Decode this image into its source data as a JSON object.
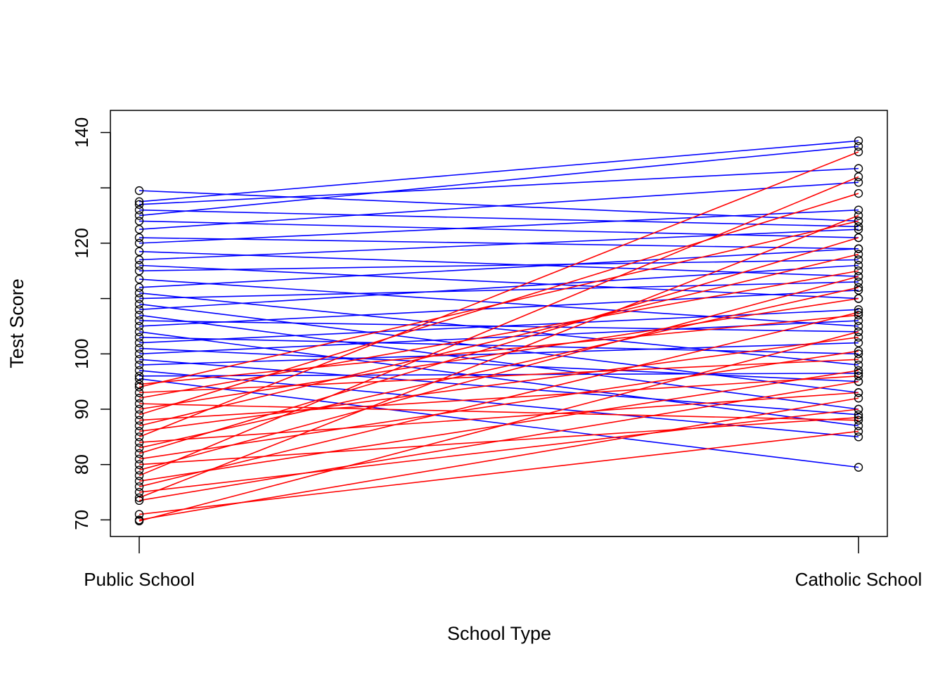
{
  "chart_data": {
    "type": "line",
    "title": "",
    "xlabel": "School Type",
    "ylabel": "Test Score",
    "categories": [
      "Public School",
      "Catholic School"
    ],
    "y_ticks": [
      70,
      80,
      90,
      100,
      110,
      120,
      130,
      140
    ],
    "y_tick_labels": [
      "70",
      "80",
      "90",
      "100",
      "",
      "120",
      "",
      "140"
    ],
    "ylim": [
      67,
      144
    ],
    "grid": false,
    "legend": "none",
    "point_marker": "open-circle",
    "series_colors": {
      "public_higher_group": "#0000ff",
      "public_lower_group": "#ff0000"
    },
    "series": [
      {
        "color": "#0000ff",
        "values": [
          129.5,
          124.0
        ]
      },
      {
        "color": "#0000ff",
        "values": [
          127.5,
          138.5
        ]
      },
      {
        "color": "#0000ff",
        "values": [
          127.0,
          133.5
        ]
      },
      {
        "color": "#0000ff",
        "values": [
          126.0,
          123.0
        ]
      },
      {
        "color": "#0000ff",
        "values": [
          125.0,
          137.5
        ]
      },
      {
        "color": "#0000ff",
        "values": [
          124.0,
          121.0
        ]
      },
      {
        "color": "#0000ff",
        "values": [
          122.5,
          131.0
        ]
      },
      {
        "color": "#0000ff",
        "values": [
          121.0,
          119.0
        ]
      },
      {
        "color": "#0000ff",
        "values": [
          120.0,
          126.0
        ]
      },
      {
        "color": "#0000ff",
        "values": [
          118.5,
          114.0
        ]
      },
      {
        "color": "#0000ff",
        "values": [
          117.0,
          122.5
        ]
      },
      {
        "color": "#0000ff",
        "values": [
          116.0,
          110.0
        ]
      },
      {
        "color": "#0000ff",
        "values": [
          115.0,
          117.0
        ]
      },
      {
        "color": "#0000ff",
        "values": [
          113.5,
          105.0
        ]
      },
      {
        "color": "#0000ff",
        "values": [
          112.0,
          119.0
        ]
      },
      {
        "color": "#0000ff",
        "values": [
          111.0,
          98.0
        ]
      },
      {
        "color": "#0000ff",
        "values": [
          110.0,
          113.0
        ]
      },
      {
        "color": "#0000ff",
        "values": [
          109.0,
          93.0
        ]
      },
      {
        "color": "#0000ff",
        "values": [
          108.0,
          116.0
        ]
      },
      {
        "color": "#0000ff",
        "values": [
          107.0,
          90.0
        ]
      },
      {
        "color": "#0000ff",
        "values": [
          106.0,
          104.0
        ]
      },
      {
        "color": "#0000ff",
        "values": [
          105.0,
          111.5
        ]
      },
      {
        "color": "#0000ff",
        "values": [
          104.0,
          87.0
        ]
      },
      {
        "color": "#0000ff",
        "values": [
          103.0,
          100.0
        ]
      },
      {
        "color": "#0000ff",
        "values": [
          102.0,
          108.0
        ]
      },
      {
        "color": "#0000ff",
        "values": [
          101.0,
          95.0
        ]
      },
      {
        "color": "#0000ff",
        "values": [
          100.0,
          106.0
        ]
      },
      {
        "color": "#0000ff",
        "values": [
          99.0,
          89.0
        ]
      },
      {
        "color": "#0000ff",
        "values": [
          98.0,
          102.0
        ]
      },
      {
        "color": "#0000ff",
        "values": [
          97.0,
          85.0
        ]
      },
      {
        "color": "#0000ff",
        "values": [
          96.0,
          96.5
        ]
      },
      {
        "color": "#0000ff",
        "values": [
          95.5,
          79.5
        ]
      },
      {
        "color": "#ff0000",
        "values": [
          94.5,
          107.0
        ]
      },
      {
        "color": "#ff0000",
        "values": [
          94.0,
          124.0
        ]
      },
      {
        "color": "#ff0000",
        "values": [
          93.0,
          99.0
        ]
      },
      {
        "color": "#ff0000",
        "values": [
          92.0,
          115.0
        ]
      },
      {
        "color": "#ff0000",
        "values": [
          91.0,
          88.0
        ]
      },
      {
        "color": "#ff0000",
        "values": [
          90.0,
          110.0
        ]
      },
      {
        "color": "#ff0000",
        "values": [
          89.0,
          129.0
        ]
      },
      {
        "color": "#ff0000",
        "values": [
          88.0,
          96.0
        ]
      },
      {
        "color": "#ff0000",
        "values": [
          87.0,
          118.0
        ]
      },
      {
        "color": "#ff0000",
        "values": [
          86.0,
          103.0
        ]
      },
      {
        "color": "#ff0000",
        "values": [
          85.0,
          136.5
        ]
      },
      {
        "color": "#ff0000",
        "values": [
          84.0,
          93.0
        ]
      },
      {
        "color": "#ff0000",
        "values": [
          83.0,
          112.0
        ]
      },
      {
        "color": "#ff0000",
        "values": [
          82.0,
          121.0
        ]
      },
      {
        "color": "#ff0000",
        "values": [
          81.0,
          100.5
        ]
      },
      {
        "color": "#ff0000",
        "values": [
          80.0,
          88.5
        ]
      },
      {
        "color": "#ff0000",
        "values": [
          79.0,
          114.0
        ]
      },
      {
        "color": "#ff0000",
        "values": [
          78.0,
          132.0
        ]
      },
      {
        "color": "#ff0000",
        "values": [
          77.0,
          97.0
        ]
      },
      {
        "color": "#ff0000",
        "values": [
          76.0,
          107.5
        ]
      },
      {
        "color": "#ff0000",
        "values": [
          75.0,
          90.0
        ]
      },
      {
        "color": "#ff0000",
        "values": [
          74.0,
          125.0
        ]
      },
      {
        "color": "#ff0000",
        "values": [
          73.5,
          95.0
        ]
      },
      {
        "color": "#ff0000",
        "values": [
          71.0,
          86.0
        ]
      },
      {
        "color": "#ff0000",
        "values": [
          70.0,
          92.0
        ]
      },
      {
        "color": "#ff0000",
        "values": [
          69.8,
          104.0
        ]
      }
    ]
  }
}
